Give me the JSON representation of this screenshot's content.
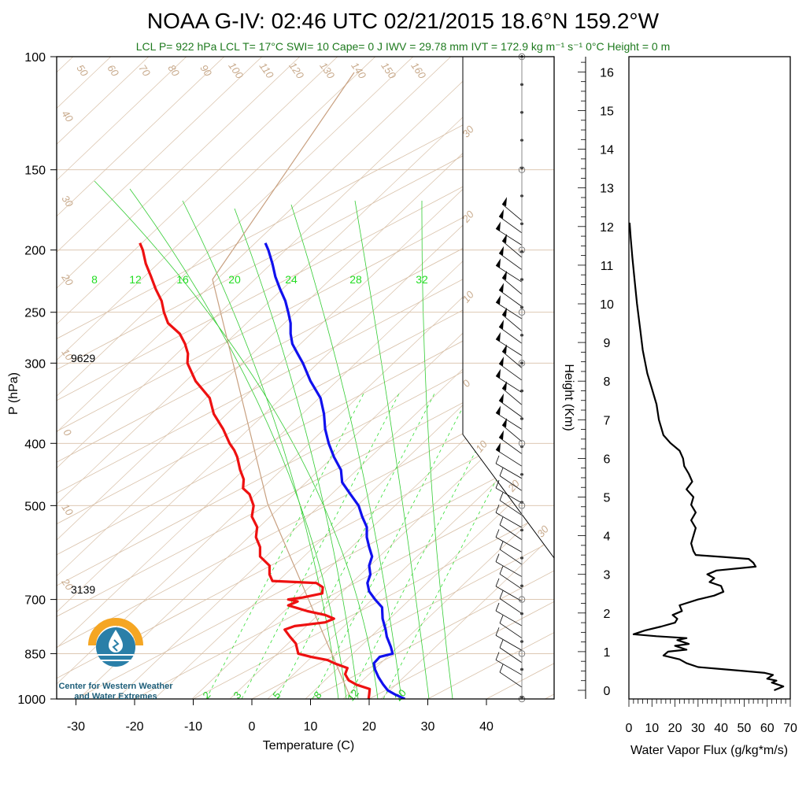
{
  "title": "NOAA G-IV: 02:46 UTC 02/21/2015  18.6°N 159.2°W",
  "subtitle": "LCL P= 922 hPa  LCL T= 17°C  SWI= 10  Cape= 0 J  IWV = 29.78 mm  IVT = 172.9 kg m⁻¹ s⁻¹  0°C Height = 0 m",
  "colors": {
    "temperature": "#ee1111",
    "dewpoint": "#1111ee",
    "isotherm": "#d8c0a8",
    "mixing_ratio": "#33dd33",
    "moist_adiabat": "#33cc33",
    "parcel": "#c8a080",
    "subtitle": "#1e7a1e",
    "logo_orange": "#f5a623",
    "logo_blue": "#2a7fa8"
  },
  "height_labels": [
    {
      "text": "9629",
      "p": 300
    },
    {
      "text": "3139",
      "p": 700
    }
  ],
  "logo": {
    "line1": "Center for Western Weather",
    "line2": "and Water Extremes"
  },
  "chart_data": [
    {
      "type": "line",
      "name": "skew-t",
      "xlabel": "Temperature (C)",
      "ylabel": "P (hPa)",
      "xlim": [
        -30,
        40
      ],
      "ylim": [
        1000,
        100
      ],
      "y_scale": "log",
      "x_ticks": [
        -30,
        -20,
        -10,
        0,
        10,
        20,
        30,
        40
      ],
      "x_tick_labels": [
        "-30",
        "-20",
        "-10",
        "0",
        "10",
        "20",
        "30",
        "40"
      ],
      "y_ticks": [
        100,
        150,
        200,
        250,
        300,
        400,
        500,
        700,
        850,
        1000
      ],
      "y_tick_labels": [
        "100",
        "150",
        "200",
        "250",
        "300",
        "400",
        "500",
        "700",
        "850",
        "1000"
      ],
      "isotherm_labels_top": [
        "50",
        "60",
        "70",
        "80",
        "90",
        "100",
        "110",
        "120",
        "130",
        "140",
        "150",
        "160"
      ],
      "isotherm_labels_left": [
        "40",
        "30",
        "20",
        "10",
        "0",
        "10",
        "20"
      ],
      "theta_labels_right": [
        "30",
        "20",
        "10",
        "0",
        "10",
        "20",
        "30"
      ],
      "mixing_ratio_labels_top": [
        "8",
        "12",
        "16",
        "20",
        "24",
        "28",
        "32"
      ],
      "mixing_ratio_labels_bottom": [
        "2",
        "3",
        "5",
        "8",
        "12",
        "20"
      ],
      "series": [
        {
          "name": "Temperature",
          "points": [
            [
              1000,
              19.9
            ],
            [
              985,
              20.0
            ],
            [
              965,
              20.1
            ],
            [
              950,
              17.8
            ],
            [
              935,
              16.5
            ],
            [
              915,
              15.9
            ],
            [
              895,
              16.3
            ],
            [
              880,
              14.1
            ],
            [
              870,
              12.9
            ],
            [
              860,
              10.1
            ],
            [
              850,
              7.9
            ],
            [
              820,
              7.5
            ],
            [
              800,
              6.5
            ],
            [
              780,
              5.6
            ],
            [
              770,
              7.3
            ],
            [
              760,
              12.5
            ],
            [
              750,
              14.0
            ],
            [
              740,
              12.5
            ],
            [
              730,
              9.5
            ],
            [
              715,
              6.2
            ],
            [
              705,
              7.8
            ],
            [
              700,
              6.2
            ],
            [
              695,
              8.7
            ],
            [
              685,
              12.0
            ],
            [
              670,
              12.1
            ],
            [
              660,
              11.0
            ],
            [
              655,
              3.5
            ],
            [
              640,
              3.0
            ],
            [
              620,
              3.0
            ],
            [
              600,
              1.4
            ],
            [
              580,
              1.4
            ],
            [
              560,
              0.7
            ],
            [
              540,
              0.9
            ],
            [
              520,
              0.0
            ],
            [
              500,
              0.3
            ],
            [
              480,
              -0.4
            ],
            [
              470,
              -1.5
            ],
            [
              455,
              -1.4
            ],
            [
              440,
              -2.0
            ],
            [
              420,
              -2.5
            ],
            [
              410,
              -3.0
            ],
            [
              400,
              -3.8
            ],
            [
              380,
              -4.9
            ],
            [
              360,
              -6.5
            ],
            [
              340,
              -7.2
            ],
            [
              320,
              -9.6
            ],
            [
              300,
              -11.0
            ],
            [
              290,
              -10.9
            ],
            [
              280,
              -11.4
            ],
            [
              270,
              -12.3
            ],
            [
              260,
              -14.3
            ],
            [
              250,
              -15.0
            ],
            [
              240,
              -15.4
            ],
            [
              230,
              -16.4
            ],
            [
              220,
              -17.2
            ],
            [
              210,
              -18.1
            ],
            [
              200,
              -18.6
            ],
            [
              195,
              -19.1
            ]
          ]
        },
        {
          "name": "Dew Point",
          "points": [
            [
              1000,
              26.1
            ],
            [
              985,
              24.5
            ],
            [
              970,
              23.2
            ],
            [
              950,
              22.4
            ],
            [
              925,
              21.6
            ],
            [
              900,
              21.0
            ],
            [
              880,
              20.8
            ],
            [
              860,
              21.8
            ],
            [
              850,
              24.0
            ],
            [
              830,
              23.7
            ],
            [
              800,
              23.0
            ],
            [
              780,
              22.8
            ],
            [
              750,
              22.3
            ],
            [
              720,
              22.2
            ],
            [
              700,
              21.0
            ],
            [
              680,
              20.0
            ],
            [
              660,
              19.7
            ],
            [
              640,
              20.2
            ],
            [
              620,
              20.0
            ],
            [
              600,
              20.5
            ],
            [
              580,
              20.0
            ],
            [
              560,
              19.6
            ],
            [
              540,
              19.6
            ],
            [
              520,
              18.8
            ],
            [
              500,
              18.2
            ],
            [
              480,
              16.8
            ],
            [
              460,
              15.4
            ],
            [
              440,
              15.2
            ],
            [
              420,
              14.0
            ],
            [
              400,
              13.1
            ],
            [
              380,
              12.5
            ],
            [
              360,
              12.3
            ],
            [
              340,
              11.7
            ],
            [
              320,
              10.0
            ],
            [
              300,
              8.7
            ],
            [
              290,
              7.8
            ],
            [
              280,
              6.9
            ],
            [
              270,
              6.6
            ],
            [
              260,
              6.6
            ],
            [
              250,
              6.2
            ],
            [
              240,
              5.7
            ],
            [
              230,
              4.8
            ],
            [
              220,
              4.0
            ],
            [
              210,
              3.5
            ],
            [
              200,
              2.8
            ],
            [
              195,
              2.3
            ]
          ]
        }
      ]
    },
    {
      "type": "line",
      "name": "water-vapor-flux",
      "xlabel": "Water Vapor Flux (g/kg*m/s)",
      "ylabel": "Height (Km)",
      "xlim": [
        0,
        70
      ],
      "ylim": [
        0,
        16.4
      ],
      "x_ticks": [
        0,
        10,
        20,
        30,
        40,
        50,
        60,
        70
      ],
      "x_tick_labels": [
        "0",
        "10",
        "20",
        "30",
        "40",
        "50",
        "60",
        "70"
      ],
      "y_ticks": [
        0,
        1,
        2,
        3,
        4,
        5,
        6,
        7,
        8,
        9,
        10,
        11,
        12,
        13,
        14,
        15,
        16
      ],
      "y_tick_labels": [
        "0",
        "1",
        "2",
        "3",
        "4",
        "5",
        "6",
        "7",
        "8",
        "9",
        "10",
        "11",
        "12",
        "13",
        "14",
        "15",
        "16"
      ],
      "series": [
        {
          "name": "Water Vapor Flux",
          "points": [
            [
              63.0,
              0.0
            ],
            [
              67.0,
              0.1
            ],
            [
              62.0,
              0.2
            ],
            [
              64.0,
              0.25
            ],
            [
              60.0,
              0.3
            ],
            [
              62.5,
              0.4
            ],
            [
              59.0,
              0.45
            ],
            [
              50.0,
              0.5
            ],
            [
              40.0,
              0.55
            ],
            [
              30.0,
              0.6
            ],
            [
              25.0,
              0.7
            ],
            [
              22.0,
              0.8
            ],
            [
              15.0,
              0.9
            ],
            [
              17.0,
              1.0
            ],
            [
              25.0,
              1.05
            ],
            [
              20.0,
              1.15
            ],
            [
              26.0,
              1.2
            ],
            [
              21.0,
              1.3
            ],
            [
              25.0,
              1.35
            ],
            [
              12.0,
              1.4
            ],
            [
              2.0,
              1.45
            ],
            [
              7.0,
              1.55
            ],
            [
              14.0,
              1.65
            ],
            [
              20.0,
              1.75
            ],
            [
              21.0,
              1.85
            ],
            [
              19.0,
              1.95
            ],
            [
              23.0,
              2.05
            ],
            [
              22.0,
              2.2
            ],
            [
              30.0,
              2.35
            ],
            [
              37.0,
              2.45
            ],
            [
              41.0,
              2.55
            ],
            [
              40.0,
              2.7
            ],
            [
              35.0,
              2.8
            ],
            [
              37.0,
              2.9
            ],
            [
              34.0,
              3.0
            ],
            [
              38.0,
              3.1
            ],
            [
              55.0,
              3.2
            ],
            [
              54.0,
              3.3
            ],
            [
              52.0,
              3.4
            ],
            [
              41.0,
              3.45
            ],
            [
              29.0,
              3.5
            ],
            [
              28.0,
              3.6
            ],
            [
              27.0,
              3.8
            ],
            [
              28.0,
              4.0
            ],
            [
              29.0,
              4.2
            ],
            [
              27.0,
              4.4
            ],
            [
              29.0,
              4.6
            ],
            [
              27.0,
              4.8
            ],
            [
              28.0,
              5.0
            ],
            [
              25.0,
              5.2
            ],
            [
              27.5,
              5.4
            ],
            [
              26.0,
              5.6
            ],
            [
              24.0,
              5.8
            ],
            [
              23.5,
              6.0
            ],
            [
              22.0,
              6.2
            ],
            [
              18.0,
              6.4
            ],
            [
              15.0,
              6.6
            ],
            [
              14.0,
              6.8
            ],
            [
              13.0,
              7.0
            ],
            [
              12.0,
              7.4
            ],
            [
              10.0,
              7.8
            ],
            [
              8.0,
              8.2
            ],
            [
              6.0,
              8.8
            ],
            [
              5.0,
              9.3
            ],
            [
              3.5,
              10.0
            ],
            [
              2.5,
              10.6
            ],
            [
              1.5,
              11.2
            ],
            [
              0.8,
              11.7
            ],
            [
              0.3,
              12.1
            ]
          ]
        }
      ]
    }
  ]
}
